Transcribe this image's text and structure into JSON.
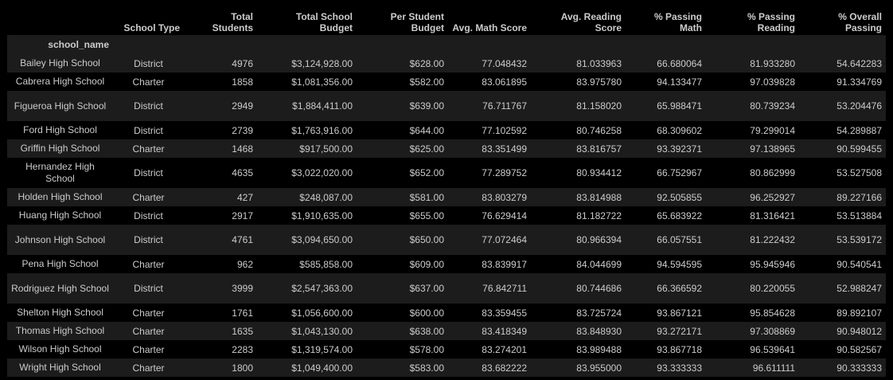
{
  "table": {
    "columns": [
      "School Type",
      "Total Students",
      "Total School Budget",
      "Per Student Budget",
      "Avg. Math Score",
      "Avg. Reading Score",
      "% Passing Math",
      "% Passing Reading",
      "% Overall Passing"
    ],
    "index_name": "school_name",
    "rows": [
      {
        "school": "Bailey High School",
        "cells": [
          "District",
          "4976",
          "$3,124,928.00",
          "$628.00",
          "77.048432",
          "81.033963",
          "66.680064",
          "81.933280",
          "54.642283"
        ]
      },
      {
        "school": "Cabrera High School",
        "cells": [
          "Charter",
          "1858",
          "$1,081,356.00",
          "$582.00",
          "83.061895",
          "83.975780",
          "94.133477",
          "97.039828",
          "91.334769"
        ]
      },
      {
        "school": "Figueroa High School",
        "cells": [
          "District",
          "2949",
          "$1,884,411.00",
          "$639.00",
          "76.711767",
          "81.158020",
          "65.988471",
          "80.739234",
          "53.204476"
        ]
      },
      {
        "school": "Ford High School",
        "cells": [
          "District",
          "2739",
          "$1,763,916.00",
          "$644.00",
          "77.102592",
          "80.746258",
          "68.309602",
          "79.299014",
          "54.289887"
        ]
      },
      {
        "school": "Griffin High School",
        "cells": [
          "Charter",
          "1468",
          "$917,500.00",
          "$625.00",
          "83.351499",
          "83.816757",
          "93.392371",
          "97.138965",
          "90.599455"
        ]
      },
      {
        "school": "Hernandez High School",
        "cells": [
          "District",
          "4635",
          "$3,022,020.00",
          "$652.00",
          "77.289752",
          "80.934412",
          "66.752967",
          "80.862999",
          "53.527508"
        ]
      },
      {
        "school": "Holden High School",
        "cells": [
          "Charter",
          "427",
          "$248,087.00",
          "$581.00",
          "83.803279",
          "83.814988",
          "92.505855",
          "96.252927",
          "89.227166"
        ]
      },
      {
        "school": "Huang High School",
        "cells": [
          "District",
          "2917",
          "$1,910,635.00",
          "$655.00",
          "76.629414",
          "81.182722",
          "65.683922",
          "81.316421",
          "53.513884"
        ]
      },
      {
        "school": "Johnson High School",
        "cells": [
          "District",
          "4761",
          "$3,094,650.00",
          "$650.00",
          "77.072464",
          "80.966394",
          "66.057551",
          "81.222432",
          "53.539172"
        ]
      },
      {
        "school": "Pena High School",
        "cells": [
          "Charter",
          "962",
          "$585,858.00",
          "$609.00",
          "83.839917",
          "84.044699",
          "94.594595",
          "95.945946",
          "90.540541"
        ]
      },
      {
        "school": "Rodriguez High School",
        "cells": [
          "District",
          "3999",
          "$2,547,363.00",
          "$637.00",
          "76.842711",
          "80.744686",
          "66.366592",
          "80.220055",
          "52.988247"
        ]
      },
      {
        "school": "Shelton High School",
        "cells": [
          "Charter",
          "1761",
          "$1,056,600.00",
          "$600.00",
          "83.359455",
          "83.725724",
          "93.867121",
          "95.854628",
          "89.892107"
        ]
      },
      {
        "school": "Thomas High School",
        "cells": [
          "Charter",
          "1635",
          "$1,043,130.00",
          "$638.00",
          "83.418349",
          "83.848930",
          "93.272171",
          "97.308869",
          "90.948012"
        ]
      },
      {
        "school": "Wilson High School",
        "cells": [
          "Charter",
          "2283",
          "$1,319,574.00",
          "$578.00",
          "83.274201",
          "83.989488",
          "93.867718",
          "96.539641",
          "90.582567"
        ]
      },
      {
        "school": "Wright High School",
        "cells": [
          "Charter",
          "1800",
          "$1,049,400.00",
          "$583.00",
          "83.682222",
          "83.955000",
          "93.333333",
          "96.611111",
          "90.333333"
        ]
      }
    ]
  }
}
